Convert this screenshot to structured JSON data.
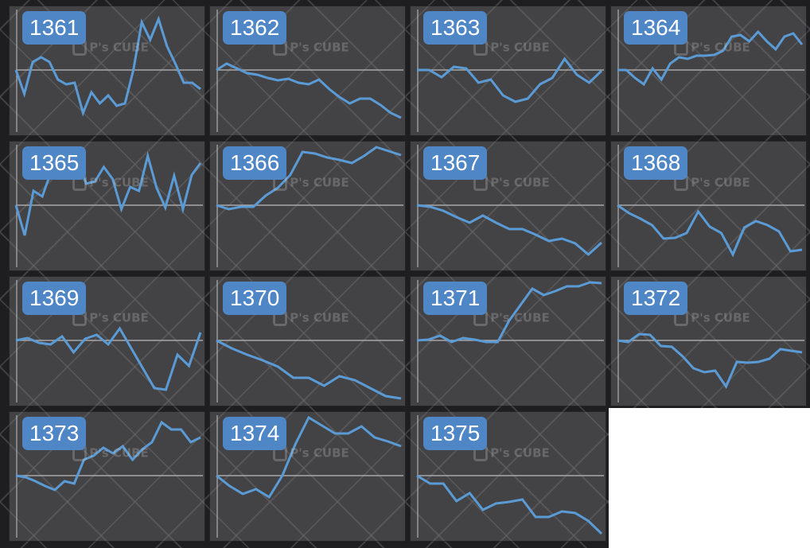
{
  "chart_data": [
    {
      "type": "line",
      "title": "1361",
      "ylim": [
        -80,
        80
      ],
      "values": [
        0,
        -30,
        10,
        16,
        10,
        -12,
        -18,
        -16,
        -54,
        -28,
        -42,
        -32,
        -45,
        -42,
        0,
        60,
        38,
        64,
        30,
        8,
        -16,
        -16,
        -24
      ]
    },
    {
      "type": "line",
      "title": "1362",
      "ylim": [
        -80,
        80
      ],
      "values": [
        0,
        8,
        2,
        -4,
        -6,
        -10,
        -13,
        -11,
        -16,
        -18,
        -12,
        -24,
        -34,
        -42,
        -36,
        -36,
        -44,
        -54,
        -60
      ]
    },
    {
      "type": "line",
      "title": "1363",
      "ylim": [
        -80,
        80
      ],
      "values": [
        0,
        0,
        -9,
        4,
        2,
        -16,
        -12,
        -32,
        -40,
        -36,
        -18,
        -10,
        14,
        -6,
        -16,
        -1
      ]
    },
    {
      "type": "line",
      "title": "1364",
      "ylim": [
        -80,
        80
      ],
      "values": [
        0,
        0,
        -10,
        -18,
        2,
        -12,
        8,
        16,
        14,
        18,
        18,
        19,
        24,
        42,
        44,
        36,
        48,
        36,
        26,
        42,
        46,
        32
      ]
    },
    {
      "type": "line",
      "title": "1365",
      "ylim": [
        -80,
        80
      ],
      "values": [
        0,
        -38,
        18,
        11,
        42,
        37,
        62,
        58,
        27,
        30,
        48,
        33,
        -5,
        23,
        18,
        62,
        22,
        -3,
        37,
        -5,
        38,
        53
      ]
    },
    {
      "type": "line",
      "title": "1366",
      "ylim": [
        -80,
        80
      ],
      "values": [
        0,
        -5,
        -2,
        -2,
        12,
        22,
        38,
        67,
        65,
        60,
        57,
        53,
        62,
        73,
        68,
        63
      ]
    },
    {
      "type": "line",
      "title": "1367",
      "ylim": [
        -80,
        80
      ],
      "values": [
        0,
        -2,
        -7,
        -15,
        -22,
        -13,
        -22,
        -30,
        -30,
        -37,
        -45,
        -42,
        -48,
        -62,
        -47
      ]
    },
    {
      "type": "line",
      "title": "1368",
      "ylim": [
        -80,
        80
      ],
      "values": [
        0,
        -10,
        -17,
        -25,
        -42,
        -41,
        -35,
        -8,
        -27,
        -35,
        -62,
        -28,
        -20,
        -25,
        -33,
        -58,
        -56
      ]
    },
    {
      "type": "line",
      "title": "1369",
      "ylim": [
        -80,
        80
      ],
      "values": [
        0,
        3,
        -3,
        -5,
        5,
        -15,
        2,
        7,
        -5,
        15,
        -10,
        -35,
        -60,
        -62,
        -18,
        -32,
        10
      ]
    },
    {
      "type": "line",
      "title": "1370",
      "ylim": [
        -80,
        80
      ],
      "values": [
        0,
        -10,
        -18,
        -25,
        -33,
        -47,
        -47,
        -57,
        -45,
        -50,
        -60,
        -70,
        -73
      ]
    },
    {
      "type": "line",
      "title": "1371",
      "ylim": [
        -80,
        80
      ],
      "values": [
        0,
        1,
        6,
        -2,
        3,
        1,
        -2,
        -2,
        25,
        45,
        65,
        57,
        62,
        68,
        68,
        73,
        72
      ]
    },
    {
      "type": "line",
      "title": "1372",
      "ylim": [
        -80,
        80
      ],
      "values": [
        0,
        -2,
        8,
        7,
        -7,
        -8,
        -20,
        -35,
        -40,
        -38,
        -58,
        -27,
        -28,
        -27,
        -23,
        -11,
        -13,
        -15
      ]
    },
    {
      "type": "line",
      "title": "1373",
      "ylim": [
        -80,
        80
      ],
      "values": [
        0,
        -2,
        -7,
        -13,
        -18,
        -7,
        -10,
        20,
        25,
        35,
        28,
        37,
        20,
        33,
        42,
        67,
        58,
        58,
        42,
        48
      ]
    },
    {
      "type": "line",
      "title": "1374",
      "ylim": [
        -80,
        80
      ],
      "values": [
        0,
        -13,
        -23,
        -17,
        -27,
        0,
        40,
        73,
        63,
        53,
        53,
        62,
        48,
        43,
        37
      ]
    },
    {
      "type": "line",
      "title": "1375",
      "ylim": [
        -80,
        80
      ],
      "values": [
        0,
        -10,
        -10,
        -32,
        -22,
        -43,
        -35,
        -33,
        -30,
        -52,
        -52,
        -45,
        -47,
        -57,
        -73
      ]
    }
  ],
  "watermark": "P's CUBE",
  "colors": {
    "line": "#5b9bd5",
    "tag": "#4f86c6",
    "baseline": "#a8a8a8"
  }
}
